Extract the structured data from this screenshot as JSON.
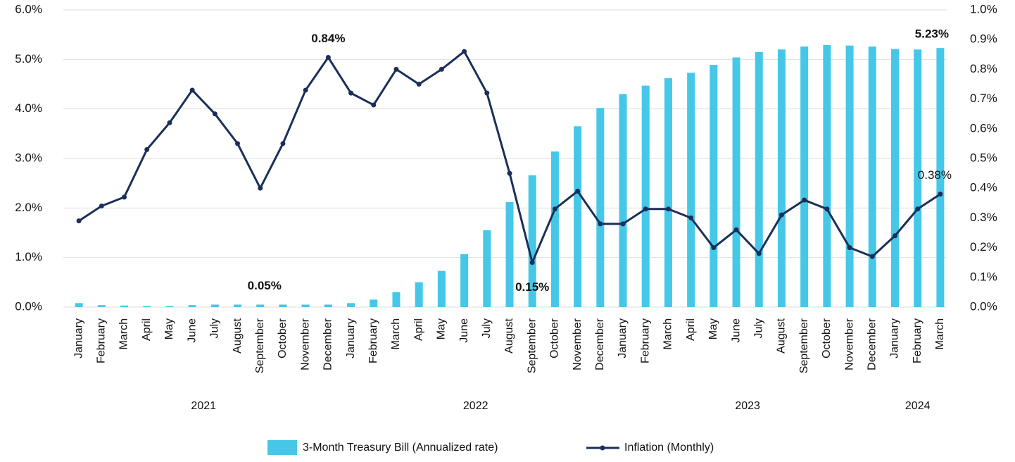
{
  "chart_data": {
    "type": "bar-line",
    "category_groups": [
      {
        "name": "2021",
        "categories": [
          "January",
          "February",
          "March",
          "April",
          "May",
          "June",
          "July",
          "August",
          "September",
          "October",
          "November",
          "December"
        ]
      },
      {
        "name": "2022",
        "categories": [
          "January",
          "February",
          "March",
          "April",
          "May",
          "June",
          "July",
          "August",
          "September",
          "October",
          "November",
          "December"
        ]
      },
      {
        "name": "2023",
        "categories": [
          "January",
          "February",
          "March",
          "April",
          "May",
          "June",
          "July",
          "August",
          "September",
          "October",
          "November",
          "December"
        ]
      },
      {
        "name": "2024",
        "categories": [
          "January",
          "February",
          "March"
        ]
      }
    ],
    "series": [
      {
        "name": "3-Month Treasury Bill (Annualized rate)",
        "type": "bar",
        "color": "#45c8e8",
        "axis": "y",
        "values": [
          0.08,
          0.04,
          0.03,
          0.02,
          0.02,
          0.04,
          0.05,
          0.05,
          0.05,
          0.05,
          0.05,
          0.05,
          0.08,
          0.15,
          0.3,
          0.5,
          0.73,
          1.07,
          1.55,
          2.12,
          2.66,
          3.14,
          3.65,
          4.02,
          4.3,
          4.47,
          4.62,
          4.73,
          4.89,
          5.04,
          5.15,
          5.2,
          5.26,
          5.29,
          5.28,
          5.26,
          5.21,
          5.2,
          5.23
        ],
        "value_labels": [
          null,
          null,
          null,
          null,
          null,
          null,
          null,
          null,
          "0.05%",
          null,
          null,
          null,
          null,
          null,
          null,
          null,
          null,
          null,
          null,
          null,
          null,
          null,
          null,
          null,
          null,
          null,
          null,
          null,
          null,
          null,
          null,
          null,
          null,
          null,
          null,
          null,
          null,
          null,
          "5.23%"
        ]
      },
      {
        "name": "Inflation (Monthly)",
        "type": "line",
        "color": "#1b2f5a",
        "axis": "y2",
        "values": [
          0.29,
          0.34,
          0.37,
          0.53,
          0.62,
          0.73,
          0.65,
          0.55,
          0.4,
          0.55,
          0.73,
          0.84,
          0.72,
          0.68,
          0.8,
          0.75,
          0.8,
          0.86,
          0.72,
          0.45,
          0.15,
          0.33,
          0.39,
          0.28,
          0.28,
          0.33,
          0.33,
          0.3,
          0.2,
          0.26,
          0.18,
          0.31,
          0.36,
          0.33,
          0.2,
          0.17,
          0.24,
          0.33,
          0.38
        ],
        "value_labels": [
          null,
          null,
          null,
          null,
          null,
          null,
          null,
          null,
          null,
          null,
          null,
          "0.84%",
          null,
          null,
          null,
          null,
          null,
          null,
          null,
          null,
          "0.15%",
          null,
          null,
          null,
          null,
          null,
          null,
          null,
          null,
          null,
          null,
          null,
          null,
          null,
          null,
          null,
          null,
          null,
          "0.38%"
        ]
      }
    ],
    "ylim": [
      0,
      6
    ],
    "yticks": [
      {
        "value": 0,
        "label": "0.0%"
      },
      {
        "value": 1,
        "label": "1.0%"
      },
      {
        "value": 2,
        "label": "2.0%"
      },
      {
        "value": 3,
        "label": "3.0%"
      },
      {
        "value": 4,
        "label": "4.0%"
      },
      {
        "value": 5,
        "label": "5.0%"
      },
      {
        "value": 6,
        "label": "6.0%"
      }
    ],
    "y2lim": [
      0,
      1
    ],
    "y2ticks": [
      {
        "value": 0,
        "label": "0.0%"
      },
      {
        "value": 0.1,
        "label": "0.1%"
      },
      {
        "value": 0.2,
        "label": "0.2%"
      },
      {
        "value": 0.3,
        "label": "0.3%"
      },
      {
        "value": 0.4,
        "label": "0.4%"
      },
      {
        "value": 0.5,
        "label": "0.5%"
      },
      {
        "value": 0.6,
        "label": "0.6%"
      },
      {
        "value": 0.7,
        "label": "0.7%"
      },
      {
        "value": 0.8,
        "label": "0.8%"
      },
      {
        "value": 0.9,
        "label": "0.9%"
      },
      {
        "value": 1,
        "label": "1.0%"
      }
    ],
    "grid": true,
    "legend": "bottom"
  }
}
